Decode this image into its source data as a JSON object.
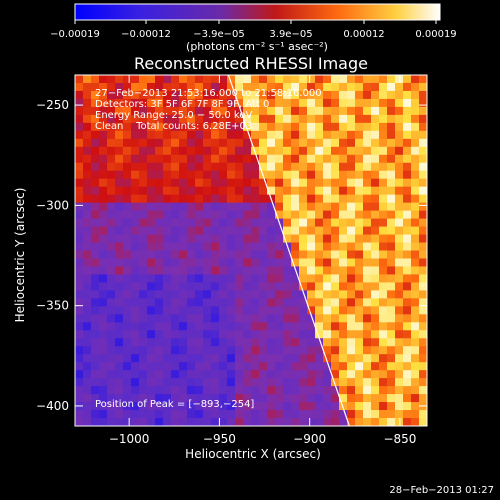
{
  "chart_data": {
    "type": "heatmap",
    "title": "Reconstructed RHESSI Image",
    "xlabel": "Heliocentric X (arcsec)",
    "ylabel": "Heliocentric Y (arcsec)",
    "xlim": [
      -1030,
      -835
    ],
    "ylim": [
      -410,
      -235
    ],
    "x_ticks": [
      -1000,
      -950,
      -900,
      -850
    ],
    "y_ticks": [
      -250,
      -300,
      -350,
      -400
    ],
    "x_tick_labels": [
      "−1000",
      "−950",
      "−900",
      "−850"
    ],
    "y_tick_labels": [
      "−250",
      "−300",
      "−350",
      "−400"
    ],
    "colorbar": {
      "range": [
        -0.00019,
        0.00019
      ],
      "tick_labels": [
        "−0.00019",
        "−0.00012",
        "−3.9e−05",
        "3.9e−05",
        "0.00012",
        "0.00019"
      ],
      "units_label": "(photons cm⁻² s⁻¹ asec⁻²)",
      "colors": [
        "#0000ff",
        "#5a2cc8",
        "#7b2fb0",
        "#d01010",
        "#ff7010",
        "#ffe040",
        "#ffffff"
      ]
    },
    "info_lines": [
      "27−Feb−2013 21:53:16.000 to 21:58:16.000",
      "Detectors: 3F 5F 6F 7F 8F 9F, Att 0",
      "Energy Range: 25.0 − 50.0 keV",
      "Clean    Total counts: 6.28E+03"
    ],
    "peak_label": "Position of Peak = [−893,−254]",
    "peak": [
      -893,
      -254
    ],
    "limb_line": [
      [
        -945,
        -235
      ],
      [
        -878,
        -410
      ]
    ],
    "timestamp": "28−Feb−2013 01:27"
  }
}
